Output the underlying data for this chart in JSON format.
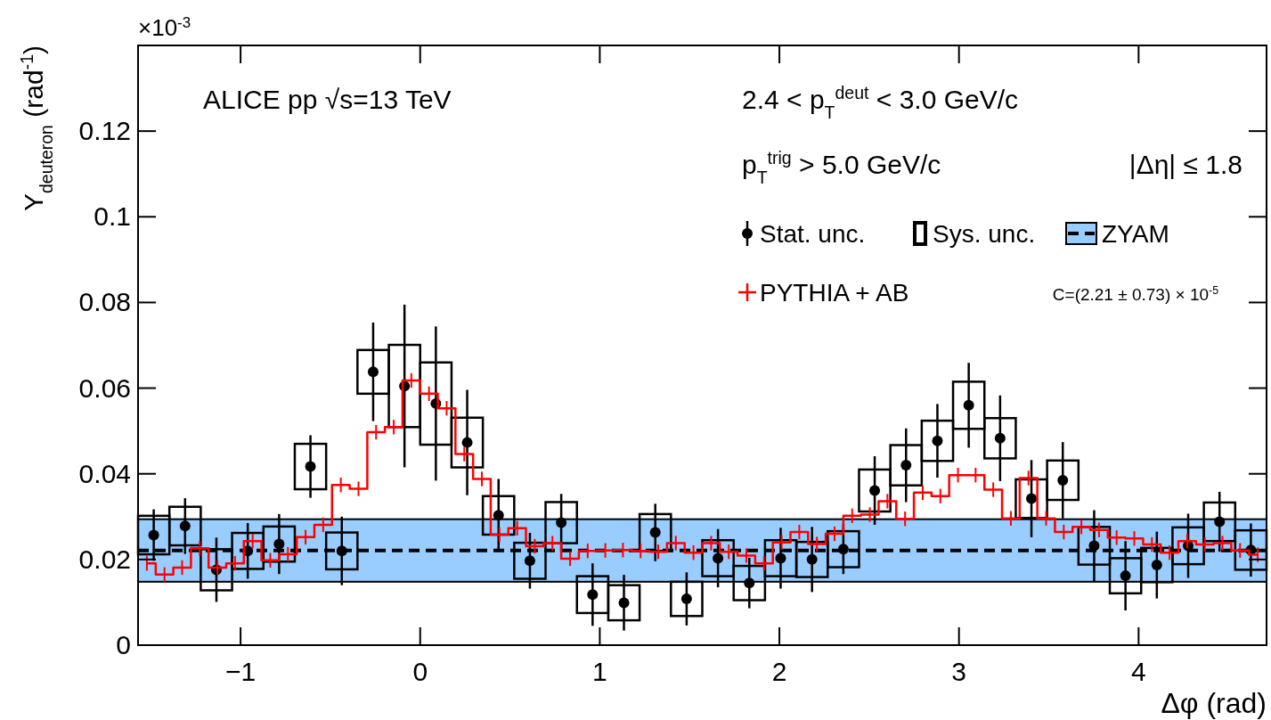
{
  "chart_data": {
    "type": "scatter",
    "xlabel": "Δφ (rad)",
    "ylabel": "Y$_{deuteron}$ (rad$^{-1}$)",
    "xlim": [
      -1.5708,
      4.7124
    ],
    "ylim": [
      0,
      0.14
    ],
    "xticks": [
      {
        "value": -1,
        "label": "−1"
      },
      0,
      1,
      2,
      3,
      4
    ],
    "yticks": [
      0,
      0.02,
      0.04,
      0.06,
      0.08,
      0.1,
      0.12
    ],
    "legend": "top right",
    "annotations": [
      "×10$^{-3}$",
      "ALICE pp √s=13 TeV",
      "2.4 < p$_{T}$$^{deut}$ < 3.0 GeV/c",
      "p$_{T}$$^{trig}$ > 5.0 GeV/c",
      "|Δη| ≤ 1.8",
      "C=(2.21 ± 0.73) × 10$^{-5}$"
    ],
    "bands": [
      {
        "axis": "y",
        "from": 0.0148,
        "to": 0.0294,
        "label": "ZYAM",
        "color": "#99ccff"
      }
    ],
    "ref_lines": [
      {
        "axis": "y",
        "value": 0.0221,
        "color": "#000000",
        "line_style": "dashed"
      }
    ],
    "series": [
      {
        "name": "Sys. unc.",
        "type": "bar",
        "color": "#000000",
        "x": [
          -1.4835,
          -1.309,
          -1.1345,
          -0.96,
          -0.7854,
          -0.6109,
          -0.4363,
          -0.2618,
          -0.0873,
          0.0873,
          0.2618,
          0.4363,
          0.6109,
          0.7854,
          0.96,
          1.1345,
          1.309,
          1.4835,
          1.6581,
          1.8326,
          2.0071,
          2.1817,
          2.3562,
          2.5307,
          2.7053,
          2.8798,
          3.0543,
          3.2289,
          3.4034,
          3.5779,
          3.7525,
          3.927,
          4.1015,
          4.2761,
          4.4506,
          4.6251
        ],
        "base": [
          0.0212,
          0.0233,
          0.0128,
          0.0178,
          0.0195,
          0.0364,
          0.0177,
          0.0587,
          0.0509,
          0.0468,
          0.0415,
          0.0258,
          0.0155,
          0.0238,
          0.0075,
          0.0058,
          0.022,
          0.0068,
          0.0161,
          0.0105,
          0.0161,
          0.0159,
          0.0182,
          0.0312,
          0.0373,
          0.043,
          0.0505,
          0.0436,
          0.0297,
          0.0339,
          0.0188,
          0.0121,
          0.0147,
          0.0189,
          0.0243,
          0.0176
        ],
        "values": [
          0.009,
          0.009,
          0.0096,
          0.0084,
          0.0082,
          0.0106,
          0.0086,
          0.0102,
          0.0192,
          0.0192,
          0.0116,
          0.009,
          0.0084,
          0.0096,
          0.0086,
          0.0082,
          0.0086,
          0.008,
          0.0084,
          0.008,
          0.0084,
          0.0082,
          0.0084,
          0.0098,
          0.0094,
          0.0094,
          0.011,
          0.0094,
          0.009,
          0.0092,
          0.0088,
          0.0082,
          0.008,
          0.0086,
          0.009,
          0.0092
        ]
      },
      {
        "name": "Stat. unc.",
        "color": "#000000",
        "marker": "circle",
        "x": [
          -1.4835,
          -1.309,
          -1.1345,
          -0.96,
          -0.7854,
          -0.6109,
          -0.4363,
          -0.2618,
          -0.0873,
          0.0873,
          0.2618,
          0.4363,
          0.6109,
          0.7854,
          0.96,
          1.1345,
          1.309,
          1.4835,
          1.6581,
          1.8326,
          2.0071,
          2.1817,
          2.3562,
          2.5307,
          2.7053,
          2.8798,
          3.0543,
          3.2289,
          3.4034,
          3.5779,
          3.7525,
          3.927,
          4.1015,
          4.2761,
          4.4506,
          4.6251
        ],
        "values": [
          0.0257,
          0.0278,
          0.0176,
          0.022,
          0.0236,
          0.0417,
          0.022,
          0.0638,
          0.0605,
          0.0564,
          0.0473,
          0.0303,
          0.0197,
          0.0286,
          0.0118,
          0.0099,
          0.0263,
          0.0108,
          0.0203,
          0.0145,
          0.0203,
          0.02,
          0.0224,
          0.0361,
          0.042,
          0.0477,
          0.056,
          0.0483,
          0.0342,
          0.0385,
          0.0232,
          0.0162,
          0.0187,
          0.0232,
          0.0288,
          0.0222
        ],
        "errors": [
          0.006,
          0.0065,
          0.0075,
          0.0065,
          0.007,
          0.0073,
          0.008,
          0.0115,
          0.019,
          0.018,
          0.0123,
          0.0085,
          0.0065,
          0.0067,
          0.0073,
          0.0065,
          0.0067,
          0.0062,
          0.0068,
          0.0059,
          0.0071,
          0.0076,
          0.0058,
          0.008,
          0.0086,
          0.0086,
          0.0099,
          0.01,
          0.009,
          0.0089,
          0.0083,
          0.0081,
          0.0078,
          0.0075,
          0.007,
          0.0062
        ]
      },
      {
        "name": "PYTHIA + AB",
        "type": "step",
        "color": "#ff0000",
        "errors": [
          0.0017,
          0.0017,
          0.0017,
          0.0017,
          0.0017,
          0.0017,
          0.0017,
          0.0017,
          0.0017,
          0.0017,
          0.0017,
          0.0017,
          0.0017,
          0.0017,
          0.0017,
          0.0017,
          0.0017,
          0.0017,
          0.0017,
          0.0017,
          0.0017,
          0.0017,
          0.0017,
          0.0017,
          0.0017,
          0.0017,
          0.0017,
          0.0017,
          0.0017,
          0.0017,
          0.0017,
          0.0017,
          0.0017,
          0.0017,
          0.0017,
          0.0017,
          0.0017,
          0.0017,
          0.0017,
          0.0017,
          0.0017,
          0.0017,
          0.0017,
          0.0017,
          0.0017,
          0.0017,
          0.0017,
          0.0017,
          0.0017,
          0.0017,
          0.0017,
          0.0017,
          0.0017,
          0.0017,
          0.0017,
          0.0017,
          0.0017,
          0.0017,
          0.0017,
          0.0017,
          0.0017,
          0.0017,
          0.0017,
          0.0017
        ],
        "x": [
          -1.5217,
          -1.4235,
          -1.3254,
          -1.2272,
          -1.129,
          -1.0308,
          -0.9327,
          -0.8345,
          -0.7363,
          -0.6381,
          -0.54,
          -0.4418,
          -0.3436,
          -0.2454,
          -0.1473,
          -0.0491,
          0.0491,
          0.1473,
          0.2454,
          0.3436,
          0.4418,
          0.54,
          0.6381,
          0.7363,
          0.8345,
          0.9327,
          1.0308,
          1.129,
          1.2272,
          1.3254,
          1.4235,
          1.5217,
          1.6199,
          1.7181,
          1.8162,
          1.9144,
          2.0126,
          2.1108,
          2.2089,
          2.3071,
          2.4053,
          2.5035,
          2.6016,
          2.6998,
          2.798,
          2.8962,
          2.9943,
          3.0925,
          3.1907,
          3.2889,
          3.387,
          3.4852,
          3.5834,
          3.6816,
          3.7797,
          3.8779,
          3.9761,
          4.0743,
          4.1724,
          4.2706,
          4.3688,
          4.467,
          4.5651,
          4.6633
        ],
        "values": [
          0.0191,
          0.0165,
          0.0181,
          0.0226,
          0.0181,
          0.0191,
          0.0243,
          0.0198,
          0.0212,
          0.0252,
          0.0281,
          0.0374,
          0.0365,
          0.0497,
          0.0509,
          0.0618,
          0.0587,
          0.0553,
          0.0446,
          0.0388,
          0.0258,
          0.0273,
          0.0231,
          0.0238,
          0.0202,
          0.022,
          0.0221,
          0.0222,
          0.022,
          0.0218,
          0.0238,
          0.0216,
          0.0238,
          0.0218,
          0.0209,
          0.0191,
          0.024,
          0.0264,
          0.0236,
          0.026,
          0.0302,
          0.0305,
          0.0336,
          0.0295,
          0.0356,
          0.0348,
          0.0397,
          0.0397,
          0.0363,
          0.0296,
          0.039,
          0.0296,
          0.0264,
          0.0276,
          0.0269,
          0.0251,
          0.0249,
          0.0235,
          0.0216,
          0.0243,
          0.0235,
          0.0238,
          0.0221,
          0.0211
        ]
      }
    ]
  }
}
